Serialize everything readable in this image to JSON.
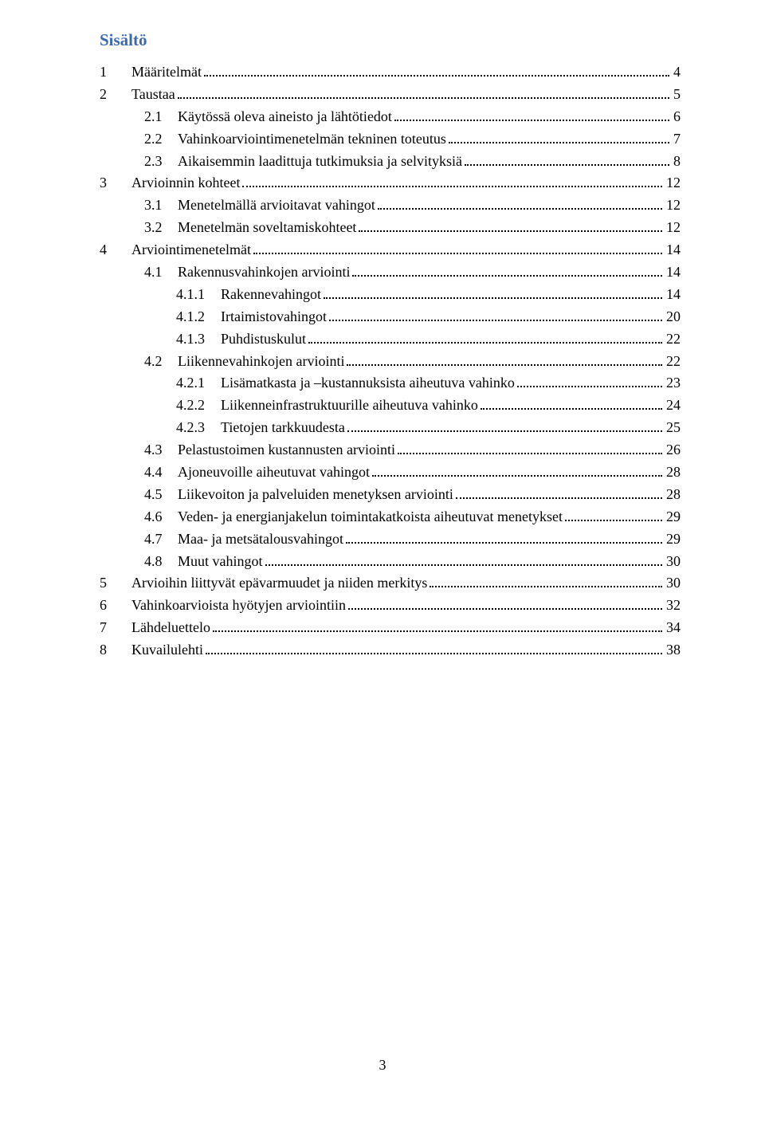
{
  "title": "Sisältö",
  "title_color": "#3a69b0",
  "text_color": "#000000",
  "background_color": "#ffffff",
  "font_family": "Times New Roman",
  "title_fontsize": 21,
  "body_fontsize": 18,
  "page_number": "3",
  "entries": [
    {
      "level": 1,
      "num": "1",
      "label": "Määritelmät",
      "page": "4"
    },
    {
      "level": 1,
      "num": "2",
      "label": "Taustaa",
      "page": "5"
    },
    {
      "level": 2,
      "num": "2.1",
      "label": "Käytössä oleva aineisto ja lähtötiedot",
      "page": "6"
    },
    {
      "level": 2,
      "num": "2.2",
      "label": "Vahinkoarviointimenetelmän tekninen toteutus",
      "page": "7"
    },
    {
      "level": 2,
      "num": "2.3",
      "label": "Aikaisemmin laadittuja tutkimuksia ja selvityksiä",
      "page": "8"
    },
    {
      "level": 1,
      "num": "3",
      "label": "Arvioinnin kohteet",
      "page": "12"
    },
    {
      "level": 2,
      "num": "3.1",
      "label": "Menetelmällä arvioitavat vahingot",
      "page": "12"
    },
    {
      "level": 2,
      "num": "3.2",
      "label": "Menetelmän soveltamiskohteet",
      "page": "12"
    },
    {
      "level": 1,
      "num": "4",
      "label": "Arviointimenetelmät",
      "page": "14"
    },
    {
      "level": 2,
      "num": "4.1",
      "label": "Rakennusvahinkojen arviointi",
      "page": "14"
    },
    {
      "level": 3,
      "num": "4.1.1",
      "label": "Rakennevahingot",
      "page": "14"
    },
    {
      "level": 3,
      "num": "4.1.2",
      "label": "Irtaimistovahingot",
      "page": "20"
    },
    {
      "level": 3,
      "num": "4.1.3",
      "label": "Puhdistuskulut",
      "page": "22"
    },
    {
      "level": 2,
      "num": "4.2",
      "label": "Liikennevahinkojen arviointi",
      "page": "22"
    },
    {
      "level": 3,
      "num": "4.2.1",
      "label": "Lisämatkasta ja –kustannuksista aiheutuva vahinko",
      "page": "23"
    },
    {
      "level": 3,
      "num": "4.2.2",
      "label": "Liikenneinfrastruktuurille aiheutuva vahinko",
      "page": "24"
    },
    {
      "level": 3,
      "num": "4.2.3",
      "label": "Tietojen tarkkuudesta",
      "page": "25"
    },
    {
      "level": 2,
      "num": "4.3",
      "label": "Pelastustoimen kustannusten arviointi",
      "page": "26"
    },
    {
      "level": 2,
      "num": "4.4",
      "label": "Ajoneuvoille aiheutuvat vahingot",
      "page": "28"
    },
    {
      "level": 2,
      "num": "4.5",
      "label": "Liikevoiton ja palveluiden menetyksen arviointi",
      "page": "28"
    },
    {
      "level": 2,
      "num": "4.6",
      "label": "Veden- ja energianjakelun toimintakatkoista aiheutuvat menetykset",
      "page": "29"
    },
    {
      "level": 2,
      "num": "4.7",
      "label": "Maa- ja metsätalousvahingot",
      "page": "29"
    },
    {
      "level": 2,
      "num": "4.8",
      "label": "Muut vahingot",
      "page": "30"
    },
    {
      "level": 1,
      "num": "5",
      "label": "Arvioihin liittyvät epävarmuudet ja niiden merkitys",
      "page": "30"
    },
    {
      "level": 1,
      "num": "6",
      "label": "Vahinkoarvioista hyötyjen arviointiin",
      "page": "32"
    },
    {
      "level": 1,
      "num": "7",
      "label": "Lähdeluettelo",
      "page": "34"
    },
    {
      "level": 1,
      "num": "8",
      "label": "Kuvailulehti",
      "page": "38"
    }
  ]
}
